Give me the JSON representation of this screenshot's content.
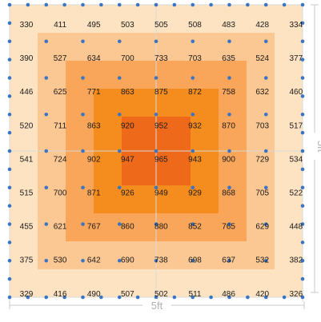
{
  "diagram": {
    "rows": [
      [
        "330",
        "411",
        "495",
        "503",
        "505",
        "508",
        "483",
        "428",
        "334"
      ],
      [
        "390",
        "527",
        "634",
        "700",
        "733",
        "703",
        "635",
        "524",
        "377"
      ],
      [
        "446",
        "625",
        "771",
        "863",
        "875",
        "872",
        "758",
        "632",
        "460"
      ],
      [
        "520",
        "711",
        "863",
        "920",
        "952",
        "932",
        "870",
        "703",
        "517"
      ],
      [
        "541",
        "724",
        "902",
        "947",
        "965",
        "943",
        "900",
        "729",
        "534"
      ],
      [
        "515",
        "700",
        "871",
        "926",
        "949",
        "929",
        "868",
        "705",
        "522"
      ],
      [
        "455",
        "621",
        "767",
        "860",
        "880",
        "852",
        "765",
        "629",
        "448"
      ],
      [
        "375",
        "530",
        "642",
        "690",
        "738",
        "698",
        "637",
        "532",
        "382"
      ],
      [
        "329",
        "416",
        "490",
        "507",
        "502",
        "511",
        "486",
        "420",
        "326"
      ]
    ],
    "zone_colors": [
      "#fde3c2",
      "#fbc792",
      "#f9a55a",
      "#f58d1e",
      "#ee6a1a"
    ],
    "grid_line_color": "#d8d8d8",
    "dot_color": "#3a75c4",
    "dimension_bottom": "5ft",
    "dimension_right": "5ft"
  }
}
